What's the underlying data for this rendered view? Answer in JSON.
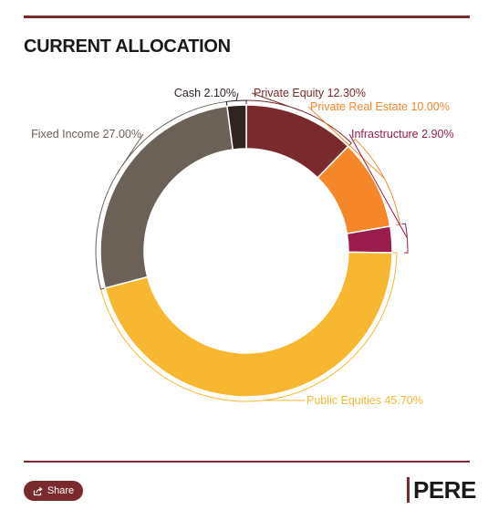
{
  "header": {
    "title": "CURRENT ALLOCATION"
  },
  "chart_data": {
    "type": "pie",
    "variant": "donut",
    "title": "CURRENT ALLOCATION",
    "slices": [
      {
        "name": "Private Equity",
        "label": "Private Equity 12.30%",
        "value": 12.3,
        "color": "#7a2a2c",
        "label_color": "#7a2a2c"
      },
      {
        "name": "Private Real Estate",
        "label": "Private Real Estate 10.00%",
        "value": 10.0,
        "color": "#f5872a",
        "label_color": "#f5872a"
      },
      {
        "name": "Infrastructure",
        "label": "Infrastructure 2.90%",
        "value": 2.9,
        "color": "#9b1c4c",
        "label_color": "#9b1c4c"
      },
      {
        "name": "Public Equities",
        "label": "Public Equities 45.70%",
        "value": 45.7,
        "color": "#f7b731",
        "label_color": "#f7b731"
      },
      {
        "name": "Fixed Income",
        "label": "Fixed Income 27.00%",
        "value": 27.0,
        "color": "#6b6157",
        "label_color": "#6b6157"
      },
      {
        "name": "Cash",
        "label": "Cash 2.10%",
        "value": 2.1,
        "color": "#2e2523",
        "label_color": "#2e2523"
      }
    ],
    "legend": "none"
  },
  "footer": {
    "share_label": "Share",
    "logo_text": "PERE"
  },
  "colors": {
    "accent": "#7a2a2c"
  }
}
